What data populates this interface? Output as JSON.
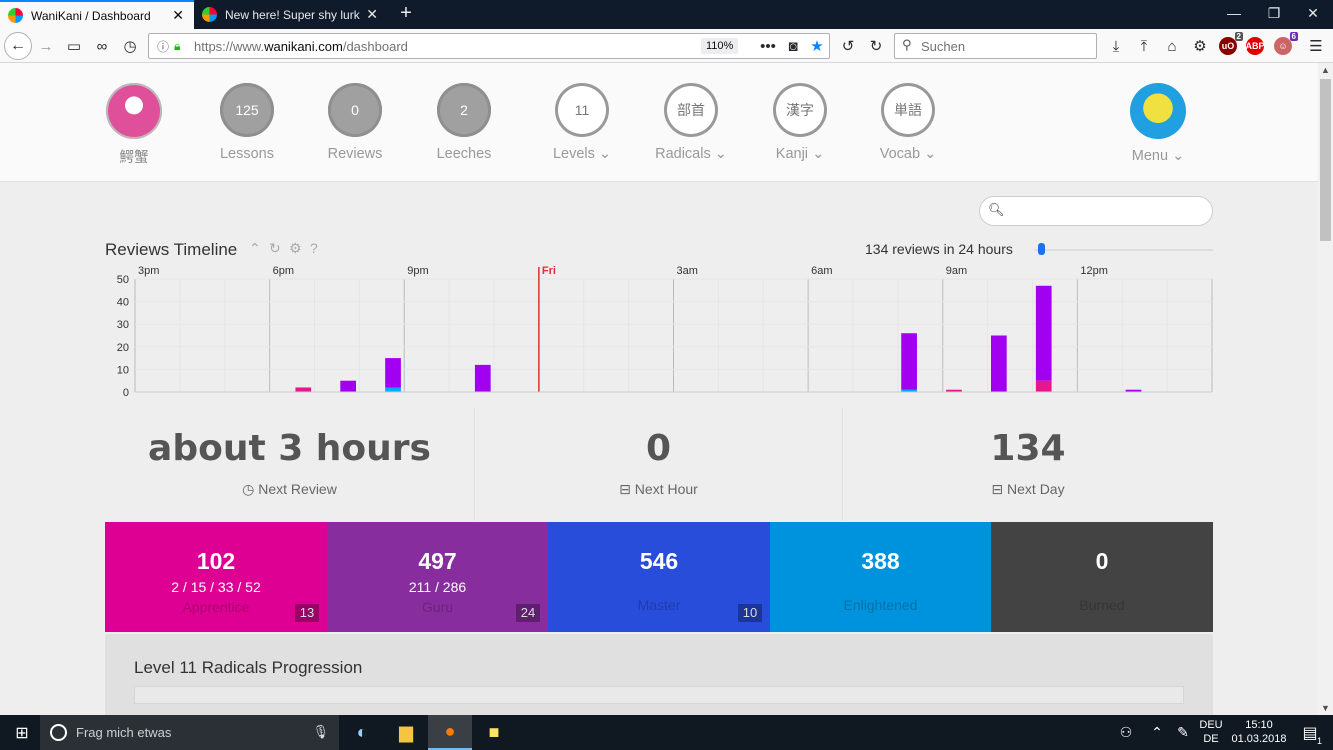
{
  "browser": {
    "tabs": [
      {
        "title": "WaniKani / Dashboard",
        "active": true
      },
      {
        "title": "New here! Super shy lurker! - C",
        "active": false
      }
    ],
    "url_prefix": "https://www.",
    "url_domain": "wanikani.com",
    "url_path": "/dashboard",
    "zoom": "110%",
    "search_placeholder": "Suchen",
    "addon_badges": {
      "ublock": "2",
      "ext": "6"
    }
  },
  "header": {
    "username": "鰐蟹",
    "lessons": {
      "count": "125",
      "label": "Lessons"
    },
    "reviews": {
      "count": "0",
      "label": "Reviews"
    },
    "leeches": {
      "count": "2",
      "label": "Leeches"
    },
    "levels": {
      "count": "11",
      "label": "Levels"
    },
    "radicals": {
      "glyph": "部首",
      "label": "Radicals"
    },
    "kanji": {
      "glyph": "漢字",
      "label": "Kanji"
    },
    "vocab": {
      "glyph": "単語",
      "label": "Vocab"
    },
    "menu": {
      "label": "Menu"
    }
  },
  "timeline": {
    "title": "Reviews Timeline",
    "summary": "134 reviews in 24 hours",
    "help": "?"
  },
  "chart_data": {
    "type": "bar",
    "x_labels": [
      "3pm",
      "6pm",
      "9pm",
      "Fri",
      "3am",
      "6am",
      "9am",
      "12pm"
    ],
    "y_ticks": [
      "50",
      "40",
      "30",
      "20",
      "10",
      "0"
    ],
    "ylim": [
      0,
      50
    ],
    "grid": true,
    "stacked": true,
    "bars": [
      {
        "slot": 7,
        "magenta": 2,
        "purple": 0,
        "cyan": 0
      },
      {
        "slot": 9,
        "magenta": 0,
        "purple": 5,
        "cyan": 0
      },
      {
        "slot": 11,
        "magenta": 0,
        "purple": 13,
        "cyan": 2
      },
      {
        "slot": 15,
        "magenta": 0,
        "purple": 12,
        "cyan": 0
      },
      {
        "slot": 34,
        "magenta": 0,
        "purple": 25,
        "cyan": 1
      },
      {
        "slot": 36,
        "magenta": 1,
        "purple": 0,
        "cyan": 0
      },
      {
        "slot": 38,
        "magenta": 0,
        "purple": 25,
        "cyan": 0
      },
      {
        "slot": 40,
        "magenta": 5,
        "purple": 42,
        "cyan": 0
      },
      {
        "slot": 44,
        "magenta": 0,
        "purple": 1,
        "cyan": 0
      }
    ],
    "colors": {
      "magenta": "#e8158f",
      "purple": "#a100f1",
      "cyan": "#00aaff",
      "now_line": "#e03030"
    }
  },
  "stats": {
    "next_review": {
      "value": "about 3 hours",
      "label": "Next Review"
    },
    "next_hour": {
      "value": "0",
      "label": "Next Hour"
    },
    "next_day": {
      "value": "134",
      "label": "Next Day"
    }
  },
  "srs": {
    "apprentice": {
      "count": "102",
      "breakdown": "2 / 15 / 33 / 52",
      "label": "Apprentice",
      "badge": "13",
      "color": "#dd0093"
    },
    "guru": {
      "count": "497",
      "breakdown": "211 / 286",
      "label": "Guru",
      "badge": "24",
      "color": "#882d9e"
    },
    "master": {
      "count": "546",
      "label": "Master",
      "badge": "10",
      "color": "#294ddb"
    },
    "enlightened": {
      "count": "388",
      "label": "Enlightened",
      "color": "#0093dd"
    },
    "burned": {
      "count": "0",
      "label": "Burned",
      "color": "#434343"
    }
  },
  "progression": {
    "title": "Level 11 Radicals Progression"
  },
  "taskbar": {
    "search_placeholder": "Frag mich etwas",
    "lang_1": "DEU",
    "lang_2": "DE",
    "time": "15:10",
    "date": "01.03.2018",
    "notifications": "1"
  }
}
